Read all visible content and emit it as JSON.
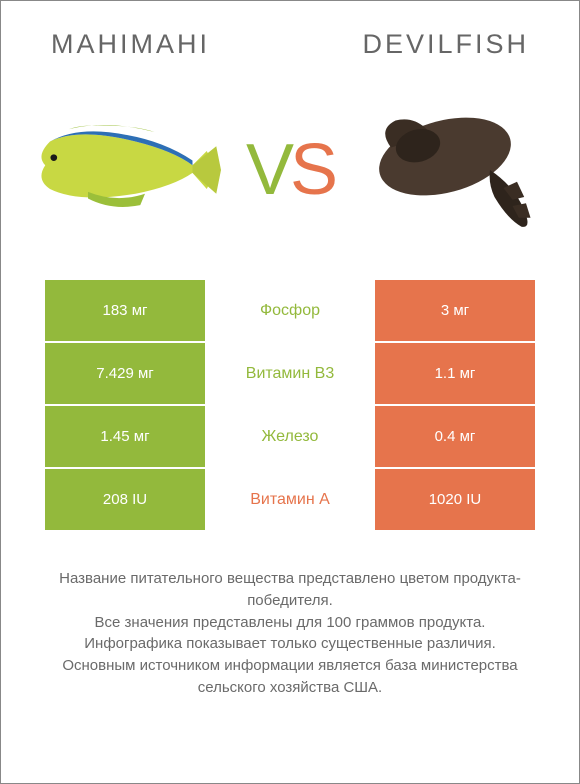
{
  "titles": {
    "left": "MAHIMAHI",
    "right": "DEVILFISH"
  },
  "vs": {
    "v": "V",
    "s": "S"
  },
  "colors": {
    "green": "#93b93c",
    "orange": "#e6744c",
    "text_mid_green": "#93b93c",
    "text_mid_orange": "#e6744c",
    "bg_left": "#93b93c",
    "bg_right": "#e6744c",
    "cell_text": "#ffffff"
  },
  "rows": [
    {
      "left": "183 мг",
      "mid": "Фосфор",
      "mid_color": "#93b93c",
      "right": "3 мг"
    },
    {
      "left": "7.429 мг",
      "mid": "Витамин B3",
      "mid_color": "#93b93c",
      "right": "1.1 мг"
    },
    {
      "left": "1.45 мг",
      "mid": "Железо",
      "mid_color": "#93b93c",
      "right": "0.4 мг"
    },
    {
      "left": "208 IU",
      "mid": "Витамин A",
      "mid_color": "#e6744c",
      "right": "1020 IU"
    }
  ],
  "footer": {
    "l1": "Название питательного вещества представлено цветом продукта-победителя.",
    "l2": "Все значения представлены для 100 граммов продукта.",
    "l3": "Инфографика показывает только существенные различия.",
    "l4": "Основным источником информации является база министерства сельского хозяйства США."
  },
  "fish1_colors": {
    "body": "#c8d843",
    "back": "#2d6fb5",
    "fin": "#9bbf3a",
    "tail": "#b8c93e"
  },
  "fish2_colors": {
    "body": "#4a3a2f",
    "dark": "#2e241c"
  }
}
